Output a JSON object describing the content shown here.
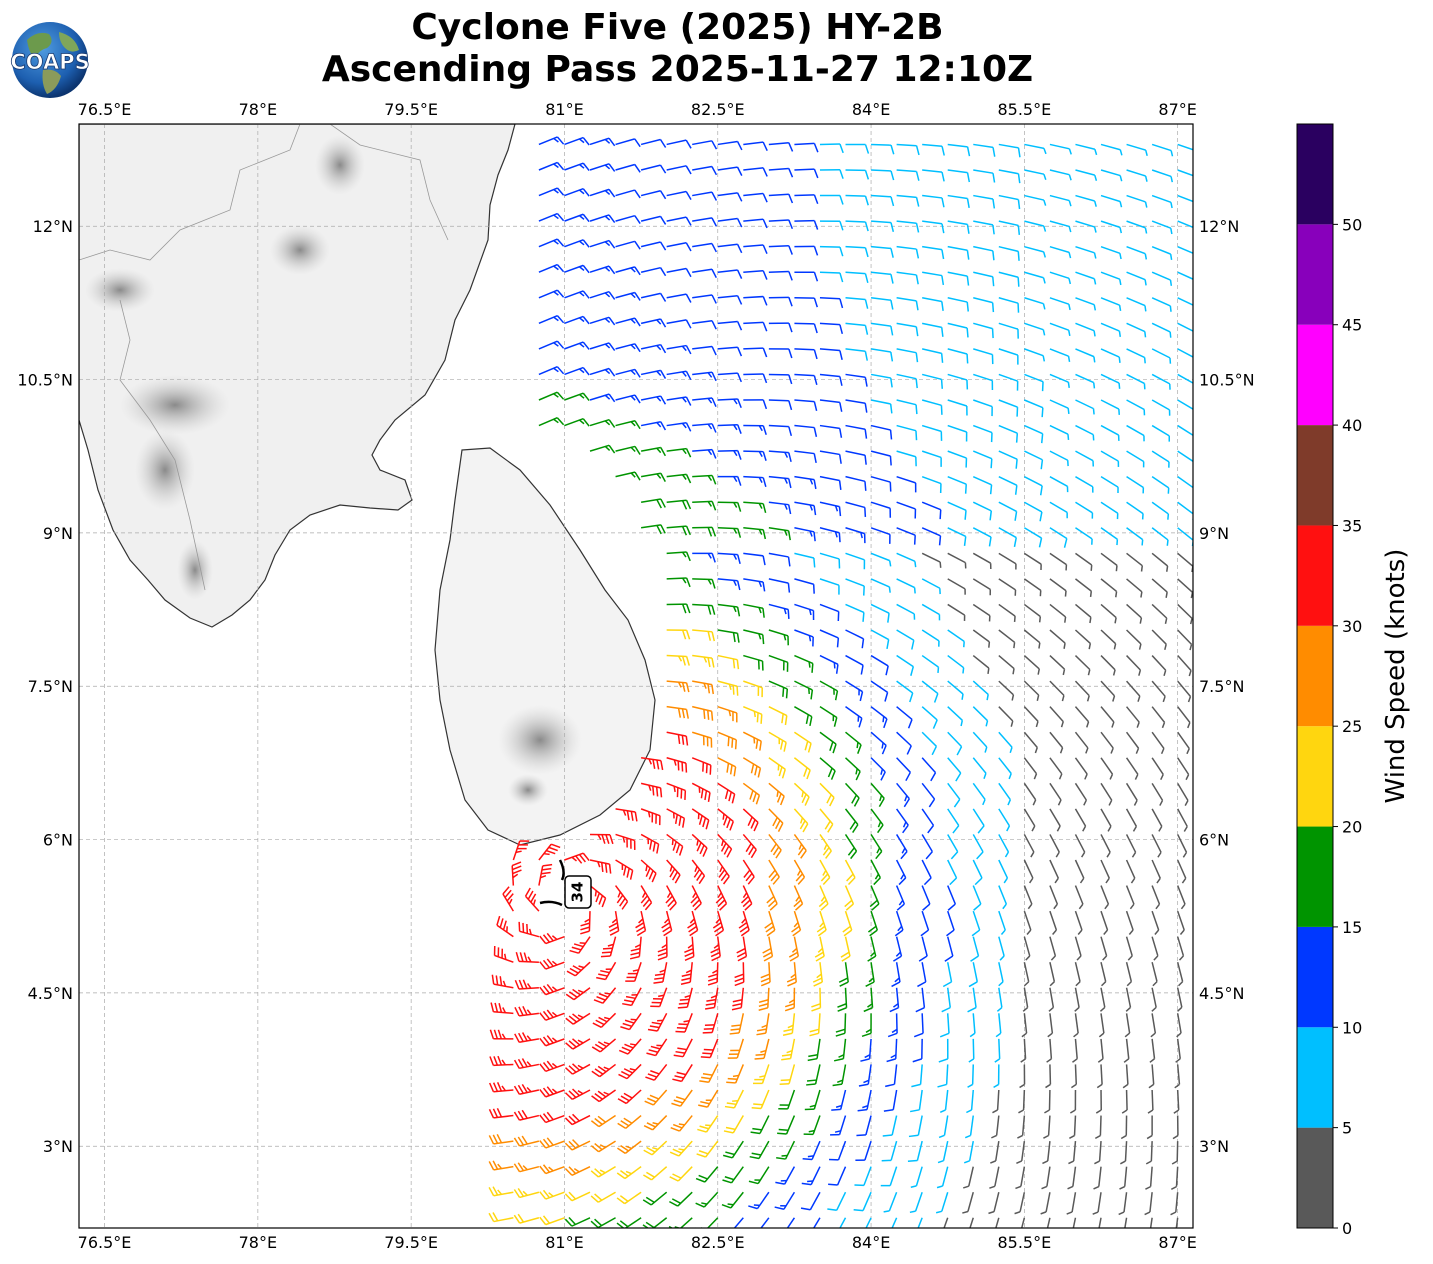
{
  "title": {
    "line1": "Cyclone Five (2025) HY-2B",
    "line2": "Ascending Pass 2025-11-27 12:10Z"
  },
  "logo": {
    "text": "COAPS",
    "icon": "globe-logo-icon"
  },
  "map": {
    "lon_range": [
      76.25,
      87.15
    ],
    "lat_range": [
      2.2,
      13.0
    ],
    "lon_ticks": [
      "76.5°E",
      "78°E",
      "79.5°E",
      "81°E",
      "82.5°E",
      "84°E",
      "85.5°E",
      "87°E"
    ],
    "lon_tick_values": [
      76.5,
      78,
      79.5,
      81,
      82.5,
      84,
      85.5,
      87
    ],
    "lat_ticks": [
      "3°N",
      "4.5°N",
      "6°N",
      "7.5°N",
      "9°N",
      "10.5°N",
      "12°N"
    ],
    "lat_tick_values": [
      3,
      4.5,
      6,
      7.5,
      9,
      10.5,
      12
    ],
    "gridlines": true,
    "storm_center": {
      "lon": 80.95,
      "lat": 5.45
    },
    "storm_label": "34"
  },
  "colorbar": {
    "label": "Wind Speed (knots)",
    "ticks": [
      "0",
      "5",
      "10",
      "15",
      "20",
      "25",
      "30",
      "35",
      "40",
      "45",
      "50"
    ],
    "bins": [
      {
        "min": 0,
        "max": 5,
        "color": "#595959"
      },
      {
        "min": 5,
        "max": 10,
        "color": "#00bfff"
      },
      {
        "min": 10,
        "max": 15,
        "color": "#0038ff"
      },
      {
        "min": 15,
        "max": 20,
        "color": "#009400"
      },
      {
        "min": 20,
        "max": 25,
        "color": "#ffd60f"
      },
      {
        "min": 25,
        "max": 30,
        "color": "#ff8c00"
      },
      {
        "min": 30,
        "max": 35,
        "color": "#ff1010"
      },
      {
        "min": 35,
        "max": 40,
        "color": "#7f3b2a"
      },
      {
        "min": 40,
        "max": 45,
        "color": "#ff00ff"
      },
      {
        "min": 45,
        "max": 50,
        "color": "#8800bb"
      },
      {
        "min": 50,
        "max": 55,
        "color": "#2a0060"
      }
    ]
  },
  "chart_data": {
    "type": "wind-barb-map",
    "center": {
      "lon": 81.0,
      "lat": 5.4
    },
    "wind_speed_units": "knots",
    "swath_west_edge_lon_at_north": 80.6,
    "swath_west_edge_lon_at_south": 80.4
  }
}
